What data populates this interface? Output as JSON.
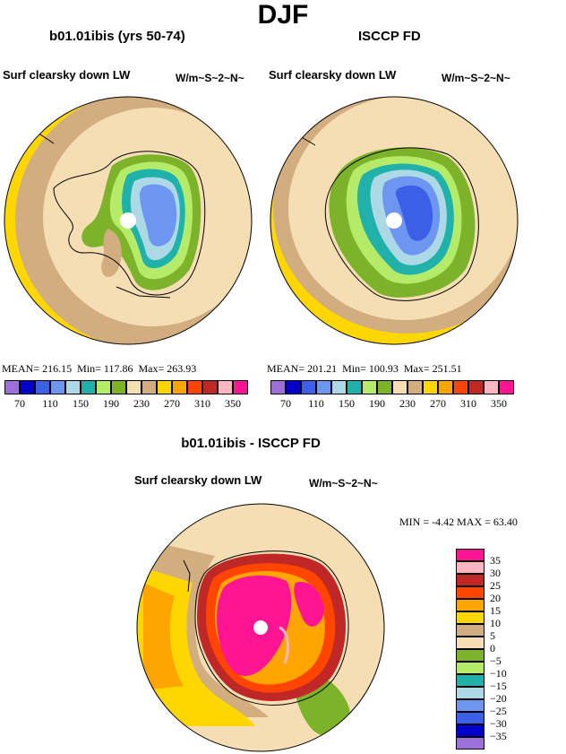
{
  "page_title": "DJF",
  "panels": {
    "model": {
      "title": "b01.01ibis (yrs 50-74)",
      "variable": "Surf clearsky down LW",
      "units": "W/m~S~2~N~",
      "stats": {
        "mean_label": "MEAN=",
        "mean": "216.15",
        "min_label": "Min=",
        "min": "117.86",
        "max_label": "Max=",
        "max": "263.93"
      }
    },
    "obs": {
      "title": "ISCCP FD",
      "variable": "Surf clearsky down LW",
      "units": "W/m~S~2~N~",
      "stats": {
        "mean_label": "MEAN=",
        "mean": "201.21",
        "min_label": "Min=",
        "min": "100.93",
        "max_label": "Max=",
        "max": "251.51"
      }
    },
    "diff": {
      "title": "b01.01ibis - ISCCP FD",
      "variable": "Surf clearsky down LW",
      "units": "W/m~S~2~N~",
      "stats": {
        "min_label": "MIN =",
        "min": "-4.42",
        "max_label": "MAX =",
        "max": "63.40"
      }
    }
  },
  "colorbar_top": {
    "labels": [
      "70",
      "110",
      "150",
      "190",
      "230",
      "270",
      "310",
      "350"
    ],
    "colors": [
      "#9d6fd8",
      "#0000c8",
      "#3c5fe8",
      "#6c96f0",
      "#add8e6",
      "#20b2aa",
      "#b4ec6a",
      "#7cb32a",
      "#f5deb3",
      "#d2ad7f",
      "#ffd700",
      "#ffa500",
      "#ff4500",
      "#c02828",
      "#ffb6c1",
      "#ff1493"
    ]
  },
  "colorbar_diff": {
    "labels": [
      "35",
      "30",
      "25",
      "20",
      "15",
      "10",
      "5",
      "0",
      "−5",
      "−10",
      "−15",
      "−20",
      "−25",
      "−30",
      "−35"
    ],
    "colors": [
      "#ff1493",
      "#ffb6c1",
      "#c02828",
      "#ff4500",
      "#ffa500",
      "#ffd700",
      "#d2ad7f",
      "#f5deb3",
      "#7cb32a",
      "#b4ec6a",
      "#20b2aa",
      "#add8e6",
      "#6c96f0",
      "#3c5fe8",
      "#0000c8",
      "#9d6fd8"
    ]
  }
}
